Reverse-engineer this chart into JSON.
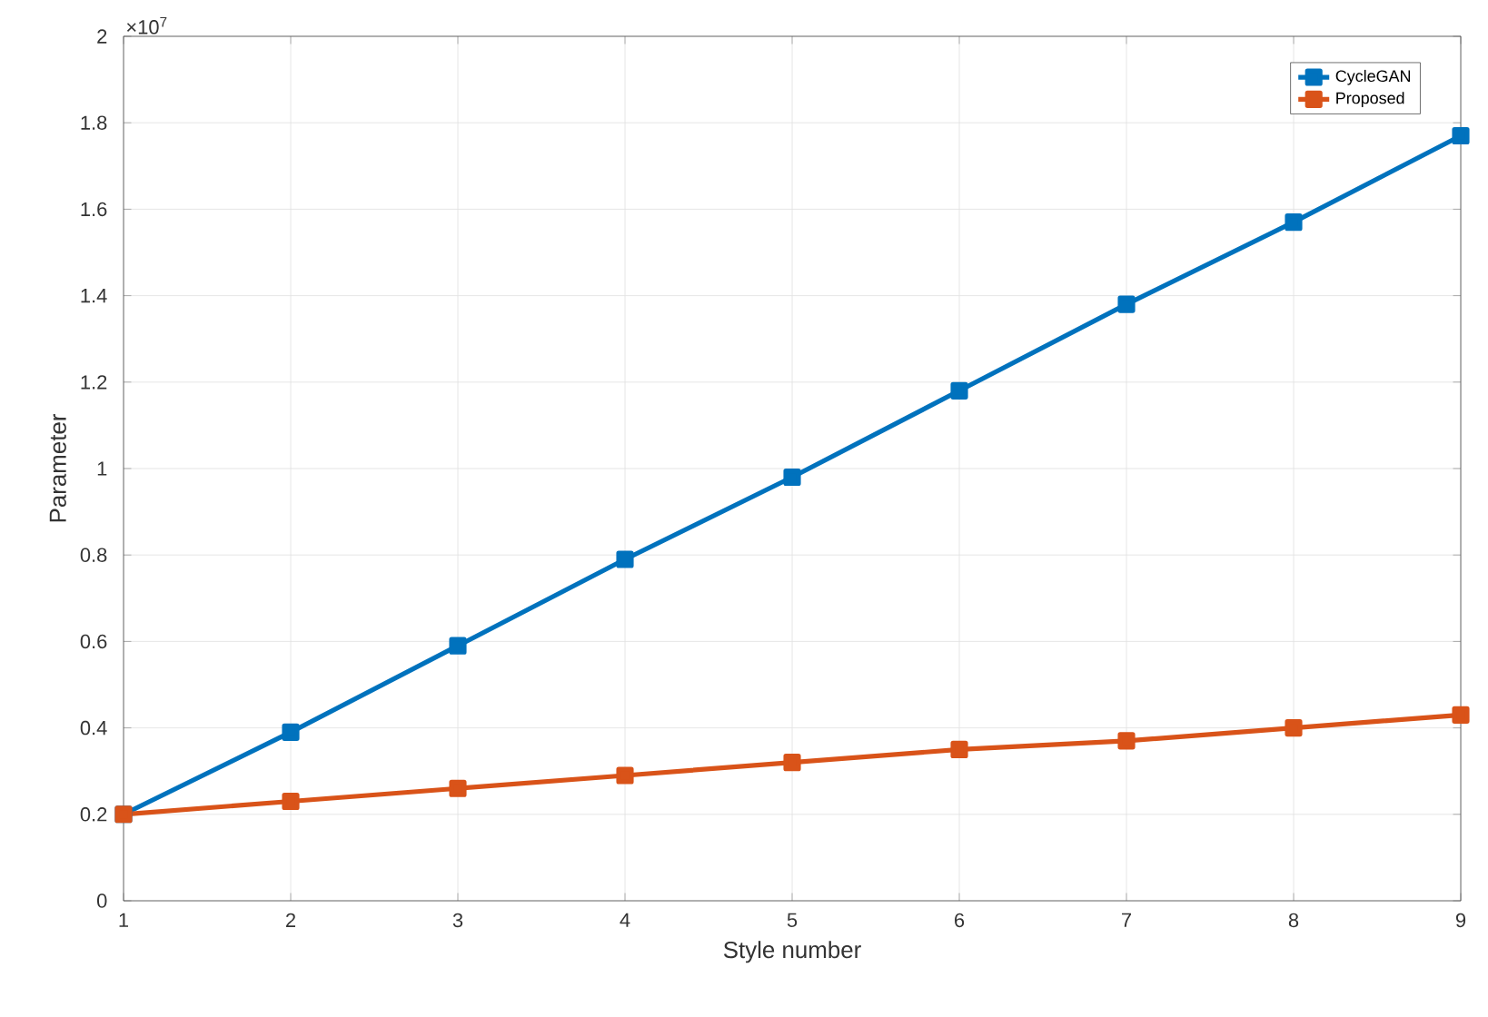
{
  "chart_data": {
    "type": "line",
    "xlabel": "Style number",
    "ylabel": "Parameter",
    "annotations": [
      "×10$^{7}$"
    ],
    "x": [
      1,
      2,
      3,
      4,
      5,
      6,
      7,
      8,
      9
    ],
    "series": [
      {
        "name": "CycleGAN",
        "color": "#0072bd",
        "values": [
          0.2,
          0.39,
          0.59,
          0.79,
          0.98,
          1.18,
          1.38,
          1.57,
          1.77
        ]
      },
      {
        "name": "Proposed",
        "color": "#d95319",
        "values": [
          0.2,
          0.23,
          0.26,
          0.29,
          0.32,
          0.35,
          0.37,
          0.4,
          0.43
        ]
      }
    ],
    "xlim": [
      1,
      9
    ],
    "ylim": [
      0,
      2
    ],
    "xticks": [
      1,
      2,
      3,
      4,
      5,
      6,
      7,
      8,
      9
    ],
    "yticks": [
      0,
      0.2,
      0.4,
      0.6,
      0.8,
      1,
      1.2,
      1.4,
      1.6,
      1.8,
      2
    ],
    "grid": true,
    "legend": "top right",
    "marker": "square",
    "line_style": "solid"
  }
}
